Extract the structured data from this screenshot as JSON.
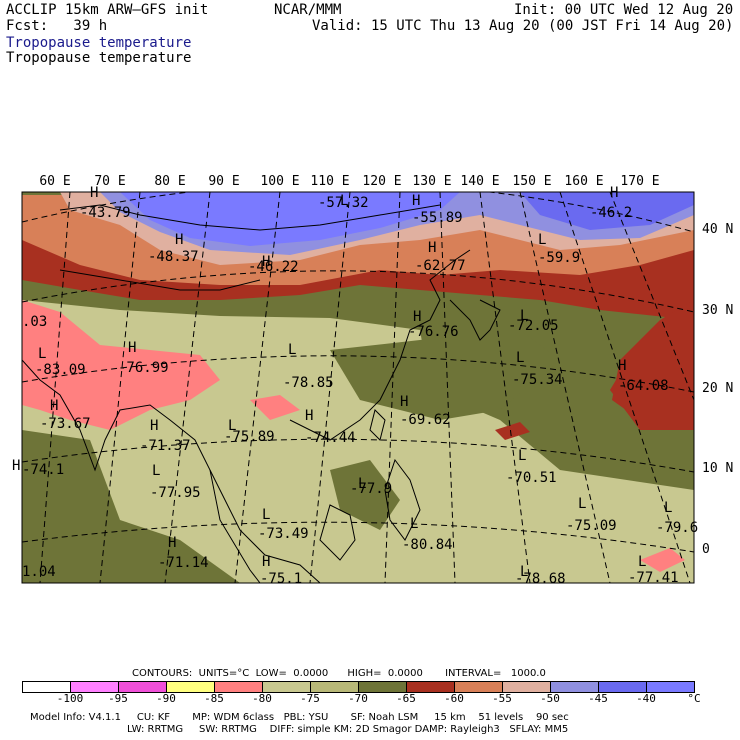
{
  "header": {
    "model_title": "ACCLIP 15km ARW–GFS init",
    "forecast": "Fcst:   39 h",
    "center_label": "NCAR/MMM",
    "init_time": "Init: 00 UTC Wed 12 Aug 20",
    "valid_time": "Valid: 15 UTC Thu 13 Aug 20 (00 JST Fri 14 Aug 20)",
    "field_line_1": "Tropopause temperature",
    "field_line_2": "Tropopause temperature"
  },
  "map": {
    "lon_labels": [
      "60 E",
      "70 E",
      "80 E",
      "90 E",
      "100 E",
      "110 E",
      "120 E",
      "130 E",
      "140 E",
      "150 E",
      "160 E",
      "170 E"
    ],
    "lat_labels": [
      "40 N",
      "30 N",
      "20 N",
      "10 N",
      "0"
    ],
    "highs_lows": [
      {
        "marker": "H",
        "value": "-43.79"
      },
      {
        "marker": "H",
        "value": "-48.37"
      },
      {
        "marker": "H",
        "value": "-46.22"
      },
      {
        "marker": "L",
        "value": "-57.32"
      },
      {
        "marker": "H",
        "value": "-55.89"
      },
      {
        "marker": "H",
        "value": "-62.77"
      },
      {
        "marker": "H",
        "value": "-46.2"
      },
      {
        "marker": "L",
        "value": "-59.9"
      },
      {
        "marker": "H",
        "value": "-76.76"
      },
      {
        "marker": "L",
        "value": "-72.05"
      },
      {
        "marker": "L",
        "value": "-83.09"
      },
      {
        "marker": "H",
        "value": "-76.99"
      },
      {
        "marker": "L",
        "value": "-78.85"
      },
      {
        "marker": "L",
        "value": "-75.34"
      },
      {
        "marker": "H",
        "value": "-64.08"
      },
      {
        "marker": "H",
        "value": "-73.67"
      },
      {
        "marker": "H",
        "value": "-71.37"
      },
      {
        "marker": "L",
        "value": "-75.89"
      },
      {
        "marker": "H",
        "value": "-74.44"
      },
      {
        "marker": "H",
        "value": "-69.62"
      },
      {
        "marker": "H",
        "value": "-74.1"
      },
      {
        "marker": "L",
        "value": "-70.51"
      },
      {
        "marker": "L",
        "value": "-77.95"
      },
      {
        "marker": "L",
        "value": "-77.9"
      },
      {
        "marker": "L",
        "value": "-73.49"
      },
      {
        "marker": "L",
        "value": "-75.09"
      },
      {
        "marker": "L",
        "value": "-79.6"
      },
      {
        "marker": "L",
        "value": "-80.84"
      },
      {
        "marker": "H",
        "value": "-71.14"
      },
      {
        "marker": "H",
        "value": "-75.1"
      },
      {
        "marker": "L",
        "value": "-78.68"
      },
      {
        "marker": "L",
        "value": "-77.41"
      },
      {
        "marker": "",
        "value": ".03"
      },
      {
        "marker": "",
        "value": "1.04"
      }
    ]
  },
  "colorbar": {
    "colors": [
      "#ffffff",
      "#ff80ff",
      "#f050d8",
      "#ffff80",
      "#ff8080",
      "#c8c890",
      "#b8b878",
      "#6e7438",
      "#a83020",
      "#d88058",
      "#e0b0a0",
      "#9090e0",
      "#6a6af0",
      "#7a7aff"
    ],
    "labels": [
      "-100",
      "-95",
      "-90",
      "-85",
      "-80",
      "-75",
      "-70",
      "-65",
      "-60",
      "-55",
      "-50",
      "-45",
      "-40"
    ],
    "unit": "°C",
    "contours_line": "CONTOURS:  UNITS=°C  LOW=  0.0000      HIGH=  0.0000       INTERVAL=   1000.0"
  },
  "footer": {
    "line_1": "Model Info: V4.1.1     CU: KF       MP: WDM 6class   PBL: YSU       SF: Noah LSM     15 km    51 levels    90 sec",
    "line_2": "LW: RRTMG     SW: RRTMG    DIFF: simple KM: 2D Smagor DAMP: Rayleigh3   SFLAY: MM5"
  }
}
